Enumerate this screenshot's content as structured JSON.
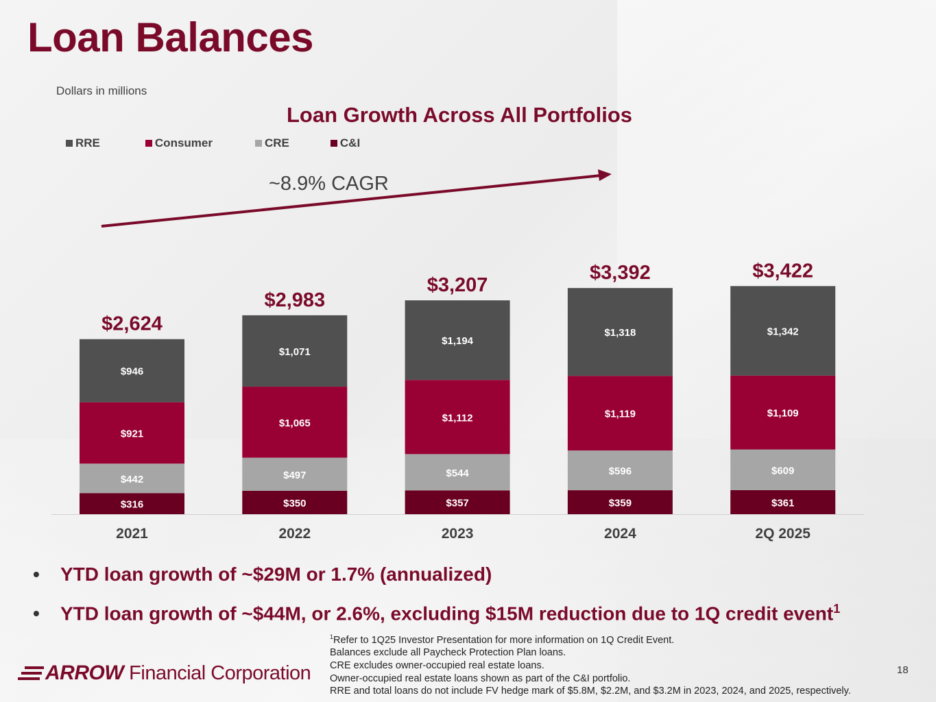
{
  "page": {
    "title": "Loan Balances",
    "subtitle": "Dollars in millions",
    "page_number": "18"
  },
  "chart_data": {
    "type": "bar",
    "stacked": true,
    "title": "Loan Growth Across All Portfolios",
    "categories": [
      "2021",
      "2022",
      "2023",
      "2024",
      "2Q 2025"
    ],
    "series": [
      {
        "name": "C&I",
        "color": "#6a0021",
        "values": [
          316,
          350,
          357,
          359,
          361
        ],
        "labels": [
          "$316",
          "$350",
          "$357",
          "$359",
          "$361"
        ]
      },
      {
        "name": "CRE",
        "color": "#a6a6a6",
        "values": [
          442,
          497,
          544,
          596,
          609
        ],
        "labels": [
          "$442",
          "$497",
          "$544",
          "$596",
          "$609"
        ]
      },
      {
        "name": "Consumer",
        "color": "#990033",
        "values": [
          921,
          1065,
          1112,
          1119,
          1109
        ],
        "labels": [
          "$921",
          "$1,065",
          "$1,112",
          "$1,119",
          "$1,109"
        ]
      },
      {
        "name": "RRE",
        "color": "#505050",
        "values": [
          946,
          1071,
          1194,
          1318,
          1342
        ],
        "labels": [
          "$946",
          "$1,071",
          "$1,194",
          "$1,318",
          "$1,342"
        ]
      }
    ],
    "legend_order": [
      "RRE",
      "Consumer",
      "CRE",
      "C&I"
    ],
    "totals": [
      2624,
      2983,
      3207,
      3392,
      3422
    ],
    "total_labels": [
      "$2,624",
      "$2,983",
      "$3,207",
      "$3,392",
      "$3,422"
    ],
    "annotation": "~8.9% CAGR",
    "ylim": [
      0,
      3500
    ],
    "grid": false,
    "legend_position": "top-left"
  },
  "bullets": [
    {
      "text": "YTD loan growth of ~$29M or 1.7% (annualized)",
      "sup": ""
    },
    {
      "text": "YTD loan growth of ~$44M, or 2.6%, excluding $15M reduction due to 1Q credit event",
      "sup": "1"
    }
  ],
  "footnotes": {
    "first_sup": "1",
    "first_text": "Refer to 1Q25 Investor Presentation for more information on 1Q Credit Event.",
    "lines": [
      "Balances exclude all Paycheck Protection Plan loans.",
      "CRE excludes owner-occupied real estate loans.",
      "Owner-occupied real estate loans shown as part of the C&I portfolio.",
      "RRE and total loans do not include FV hedge mark of $5.8M, $2.2M, and $3.2M in 2023, 2024, and 2025, respectively."
    ]
  },
  "logo": {
    "brand": "ARROW",
    "rest": "Financial Corporation"
  }
}
